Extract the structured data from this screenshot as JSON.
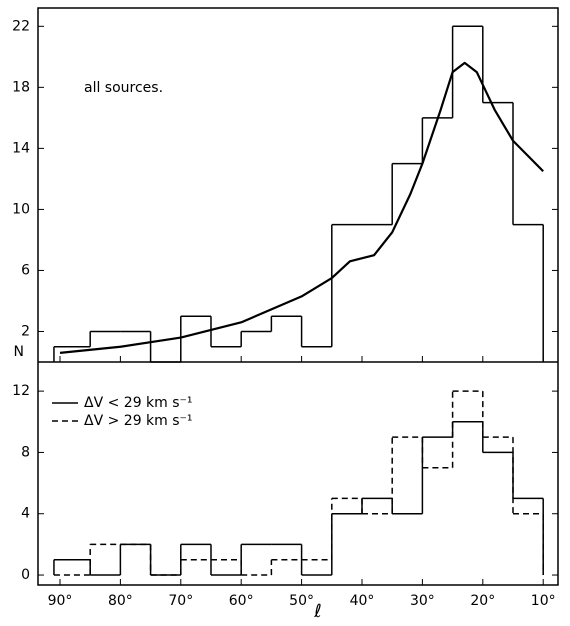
{
  "chart_data": [
    {
      "type": "histogram",
      "annotation": "all sources.",
      "ylabel": "N",
      "bins": [
        91,
        85,
        80,
        75,
        70,
        65,
        60,
        55,
        50,
        45,
        40,
        35,
        30,
        25,
        20,
        15,
        10
      ],
      "values": [
        1,
        2,
        2,
        0,
        3,
        1,
        2,
        3,
        1,
        9,
        9,
        13,
        16,
        22,
        17,
        9
      ],
      "color": "#000000",
      "fit": {
        "x": [
          90,
          80,
          70,
          60,
          50,
          45,
          42,
          38,
          35,
          32,
          30,
          27,
          25,
          23,
          21,
          18,
          15,
          10
        ],
        "values": [
          0.6,
          1.0,
          1.6,
          2.6,
          4.3,
          5.5,
          6.6,
          7.0,
          8.5,
          11,
          13,
          16.5,
          19,
          19.6,
          19,
          16.5,
          14.5,
          12.5
        ]
      },
      "xlim": [
        93.64,
        7.55
      ],
      "ylim": [
        0,
        23.2
      ],
      "yticks": [
        2,
        6,
        10,
        14,
        18,
        22
      ]
    },
    {
      "type": "histogram",
      "xlabel": "ℓ",
      "bins": [
        91,
        85,
        80,
        75,
        70,
        65,
        60,
        55,
        50,
        45,
        40,
        35,
        30,
        25,
        20,
        15,
        10
      ],
      "series": [
        {
          "name": "ΔV < 29 km s⁻¹",
          "color": "#000000",
          "dash": false,
          "values": [
            1,
            0,
            2,
            0,
            2,
            0,
            2,
            2,
            0,
            4,
            5,
            4,
            9,
            10,
            8,
            5
          ]
        },
        {
          "name": "ΔV > 29 km s⁻¹",
          "color": "#000000",
          "dash": true,
          "values": [
            0,
            2,
            2,
            0,
            1,
            1,
            0,
            1,
            1,
            5,
            4,
            9,
            7,
            12,
            9,
            4
          ]
        }
      ],
      "xlim": [
        93.64,
        7.55
      ],
      "ylim": [
        -0.65,
        13.9
      ],
      "xticks": [
        {
          "value": 90,
          "label": "90°"
        },
        {
          "value": 80,
          "label": "80°"
        },
        {
          "value": 70,
          "label": "70°"
        },
        {
          "value": 60,
          "label": "60°"
        },
        {
          "value": 50,
          "label": "50°"
        },
        {
          "value": 40,
          "label": "40°"
        },
        {
          "value": 30,
          "label": "30°"
        },
        {
          "value": 20,
          "label": "20°"
        },
        {
          "value": 10,
          "label": "10°"
        }
      ],
      "yticks": [
        0,
        4,
        8,
        12
      ]
    }
  ]
}
